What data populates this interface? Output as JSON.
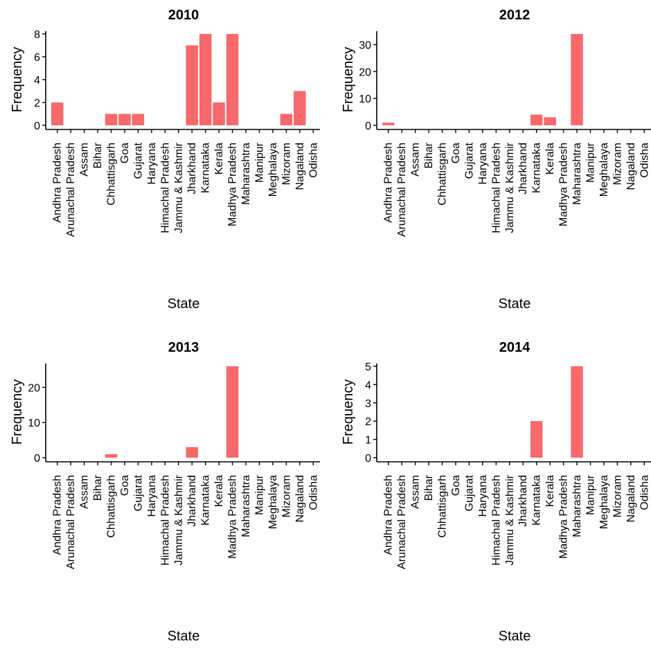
{
  "chart_data": [
    {
      "type": "bar",
      "title": "2010",
      "xlabel": "State",
      "ylabel": "Frequency",
      "categories": [
        "Andhra Pradesh",
        "Arunachal Pradesh",
        "Assam",
        "Bihar",
        "Chhattisgarh",
        "Goa",
        "Gujarat",
        "Haryana",
        "Himachal Pradesh",
        "Jammu & Kashmir",
        "Jharkhand",
        "Karnataka",
        "Kerala",
        "Madhya Pradesh",
        "Maharashtra",
        "Manipur",
        "Meghalaya",
        "Mizoram",
        "Nagaland",
        "Odisha"
      ],
      "values": [
        2,
        0,
        0,
        0,
        1,
        1,
        1,
        0,
        0,
        0,
        7,
        8,
        2,
        8,
        0,
        0,
        0,
        1,
        3,
        0
      ],
      "ylim": [
        0,
        8
      ],
      "yticks": [
        0,
        2,
        4,
        6,
        8
      ],
      "grid": false,
      "bar_color": "#F8696B"
    },
    {
      "type": "bar",
      "title": "2012",
      "xlabel": "State",
      "ylabel": "Frequency",
      "categories": [
        "Andhra Pradesh",
        "Arunachal Pradesh",
        "Assam",
        "Bihar",
        "Chhattisgarh",
        "Goa",
        "Gujarat",
        "Haryana",
        "Himachal Pradesh",
        "Jammu & Kashmir",
        "Jharkhand",
        "Karnataka",
        "Kerala",
        "Madhya Pradesh",
        "Maharashtra",
        "Manipur",
        "Meghalaya",
        "Mizoram",
        "Nagaland",
        "Odisha"
      ],
      "values": [
        1,
        0,
        0,
        0,
        0,
        0,
        0,
        0,
        0,
        0,
        0,
        4,
        3,
        0,
        34,
        0,
        0,
        0,
        0,
        0
      ],
      "ylim": [
        0,
        34
      ],
      "yticks": [
        0,
        10,
        20,
        30
      ],
      "grid": false,
      "bar_color": "#F8696B"
    },
    {
      "type": "bar",
      "title": "2013",
      "xlabel": "State",
      "ylabel": "Frequency",
      "categories": [
        "Andhra Pradesh",
        "Arunachal Pradesh",
        "Assam",
        "Bihar",
        "Chhattisgarh",
        "Goa",
        "Gujarat",
        "Haryana",
        "Himachal Pradesh",
        "Jammu & Kashmir",
        "Jharkhand",
        "Karnataka",
        "Kerala",
        "Madhya Pradesh",
        "Maharashtra",
        "Manipur",
        "Meghalaya",
        "Mizoram",
        "Nagaland",
        "Odisha"
      ],
      "values": [
        0,
        0,
        0,
        0,
        1,
        0,
        0,
        0,
        0,
        0,
        3,
        0,
        0,
        26,
        0,
        0,
        0,
        0,
        0,
        0
      ],
      "ylim": [
        0,
        26
      ],
      "yticks": [
        0,
        10,
        20
      ],
      "grid": false,
      "bar_color": "#F8696B"
    },
    {
      "type": "bar",
      "title": "2014",
      "xlabel": "State",
      "ylabel": "Frequency",
      "categories": [
        "Andhra Pradesh",
        "Arunachal Pradesh",
        "Assam",
        "Bihar",
        "Chhattisgarh",
        "Goa",
        "Gujarat",
        "Haryana",
        "Himachal Pradesh",
        "Jammu & Kashmir",
        "Jharkhand",
        "Karnataka",
        "Kerala",
        "Madhya Pradesh",
        "Maharashtra",
        "Manipur",
        "Meghalaya",
        "Mizoram",
        "Nagaland",
        "Odisha"
      ],
      "values": [
        0,
        0,
        0,
        0,
        0,
        0,
        0,
        0,
        0,
        0,
        0,
        2,
        0,
        0,
        5,
        0,
        0,
        0,
        0,
        0
      ],
      "ylim": [
        0,
        5
      ],
      "yticks": [
        0,
        1,
        2,
        3,
        4,
        5
      ],
      "grid": false,
      "bar_color": "#F8696B"
    }
  ]
}
